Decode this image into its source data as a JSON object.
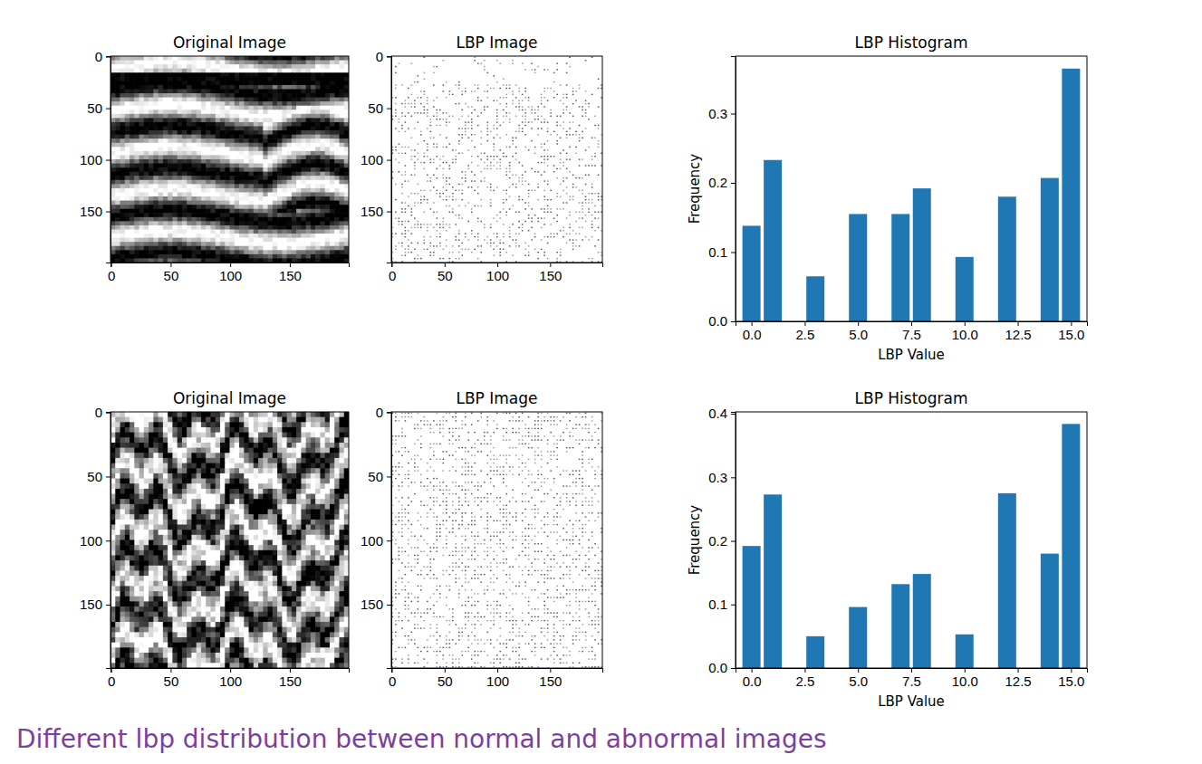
{
  "chart_data": [
    {
      "type": "image",
      "title": "Original Image",
      "xlim": [
        -0.5,
        199.5
      ],
      "ylim": [
        199.5,
        -0.5
      ],
      "xticks": [
        0,
        50,
        100,
        150
      ],
      "yticks": [
        0,
        50,
        100,
        150
      ]
    },
    {
      "type": "image",
      "title": "LBP Image",
      "xlim": [
        -0.5,
        199.5
      ],
      "ylim": [
        199.5,
        -0.5
      ],
      "xticks": [
        0,
        50,
        100,
        150
      ],
      "yticks": [
        0,
        50,
        100,
        150
      ]
    },
    {
      "type": "bar",
      "title": "LBP Histogram",
      "xlabel": "LBP Value",
      "ylabel": "Frequency",
      "color": "#1f77b4",
      "x": [
        0,
        1,
        3,
        5,
        7,
        8,
        10,
        12,
        14,
        15
      ],
      "values": [
        0.138,
        0.233,
        0.065,
        0.155,
        0.155,
        0.192,
        0.093,
        0.18,
        0.207,
        0.365
      ],
      "xlim": [
        -0.75,
        15.75
      ],
      "xticks": [
        {
          "value": 0,
          "label": "0.0"
        },
        2.5,
        {
          "value": 5,
          "label": "5.0"
        },
        7.5,
        {
          "value": 10,
          "label": "10.0"
        },
        12.5,
        {
          "value": 15,
          "label": "15.0"
        }
      ],
      "ylim": [
        0,
        0.383
      ],
      "yticks": [
        {
          "value": 0,
          "label": "0.0"
        },
        0.1,
        0.2,
        0.3
      ]
    },
    {
      "type": "image",
      "title": "Original Image",
      "xlim": [
        -0.5,
        199.5
      ],
      "ylim": [
        199.5,
        -0.5
      ],
      "xticks": [
        0,
        50,
        100,
        150
      ],
      "yticks": [
        0,
        50,
        100,
        150
      ]
    },
    {
      "type": "image",
      "title": "LBP Image",
      "xlim": [
        -0.5,
        199.5
      ],
      "ylim": [
        199.5,
        -0.5
      ],
      "xticks": [
        0,
        50,
        100,
        150
      ],
      "yticks": [
        0,
        50,
        100,
        150
      ]
    },
    {
      "type": "bar",
      "title": "LBP Histogram",
      "xlabel": "LBP Value",
      "ylabel": "Frequency",
      "color": "#1f77b4",
      "x": [
        0,
        1,
        3,
        5,
        7,
        8,
        10,
        12,
        14,
        15
      ],
      "values": [
        0.192,
        0.273,
        0.05,
        0.096,
        0.132,
        0.148,
        0.053,
        0.275,
        0.18,
        0.384
      ],
      "xlim": [
        -0.75,
        15.75
      ],
      "xticks": [
        {
          "value": 0,
          "label": "0.0"
        },
        2.5,
        {
          "value": 5,
          "label": "5.0"
        },
        7.5,
        {
          "value": 10,
          "label": "10.0"
        },
        12.5,
        {
          "value": 15,
          "label": "15.0"
        }
      ],
      "ylim": [
        0,
        0.403
      ],
      "yticks": [
        {
          "value": 0,
          "label": "0.0"
        },
        0.1,
        0.2,
        0.3,
        0.4
      ]
    }
  ],
  "caption": "Different lbp distribution between normal and abnormal images"
}
